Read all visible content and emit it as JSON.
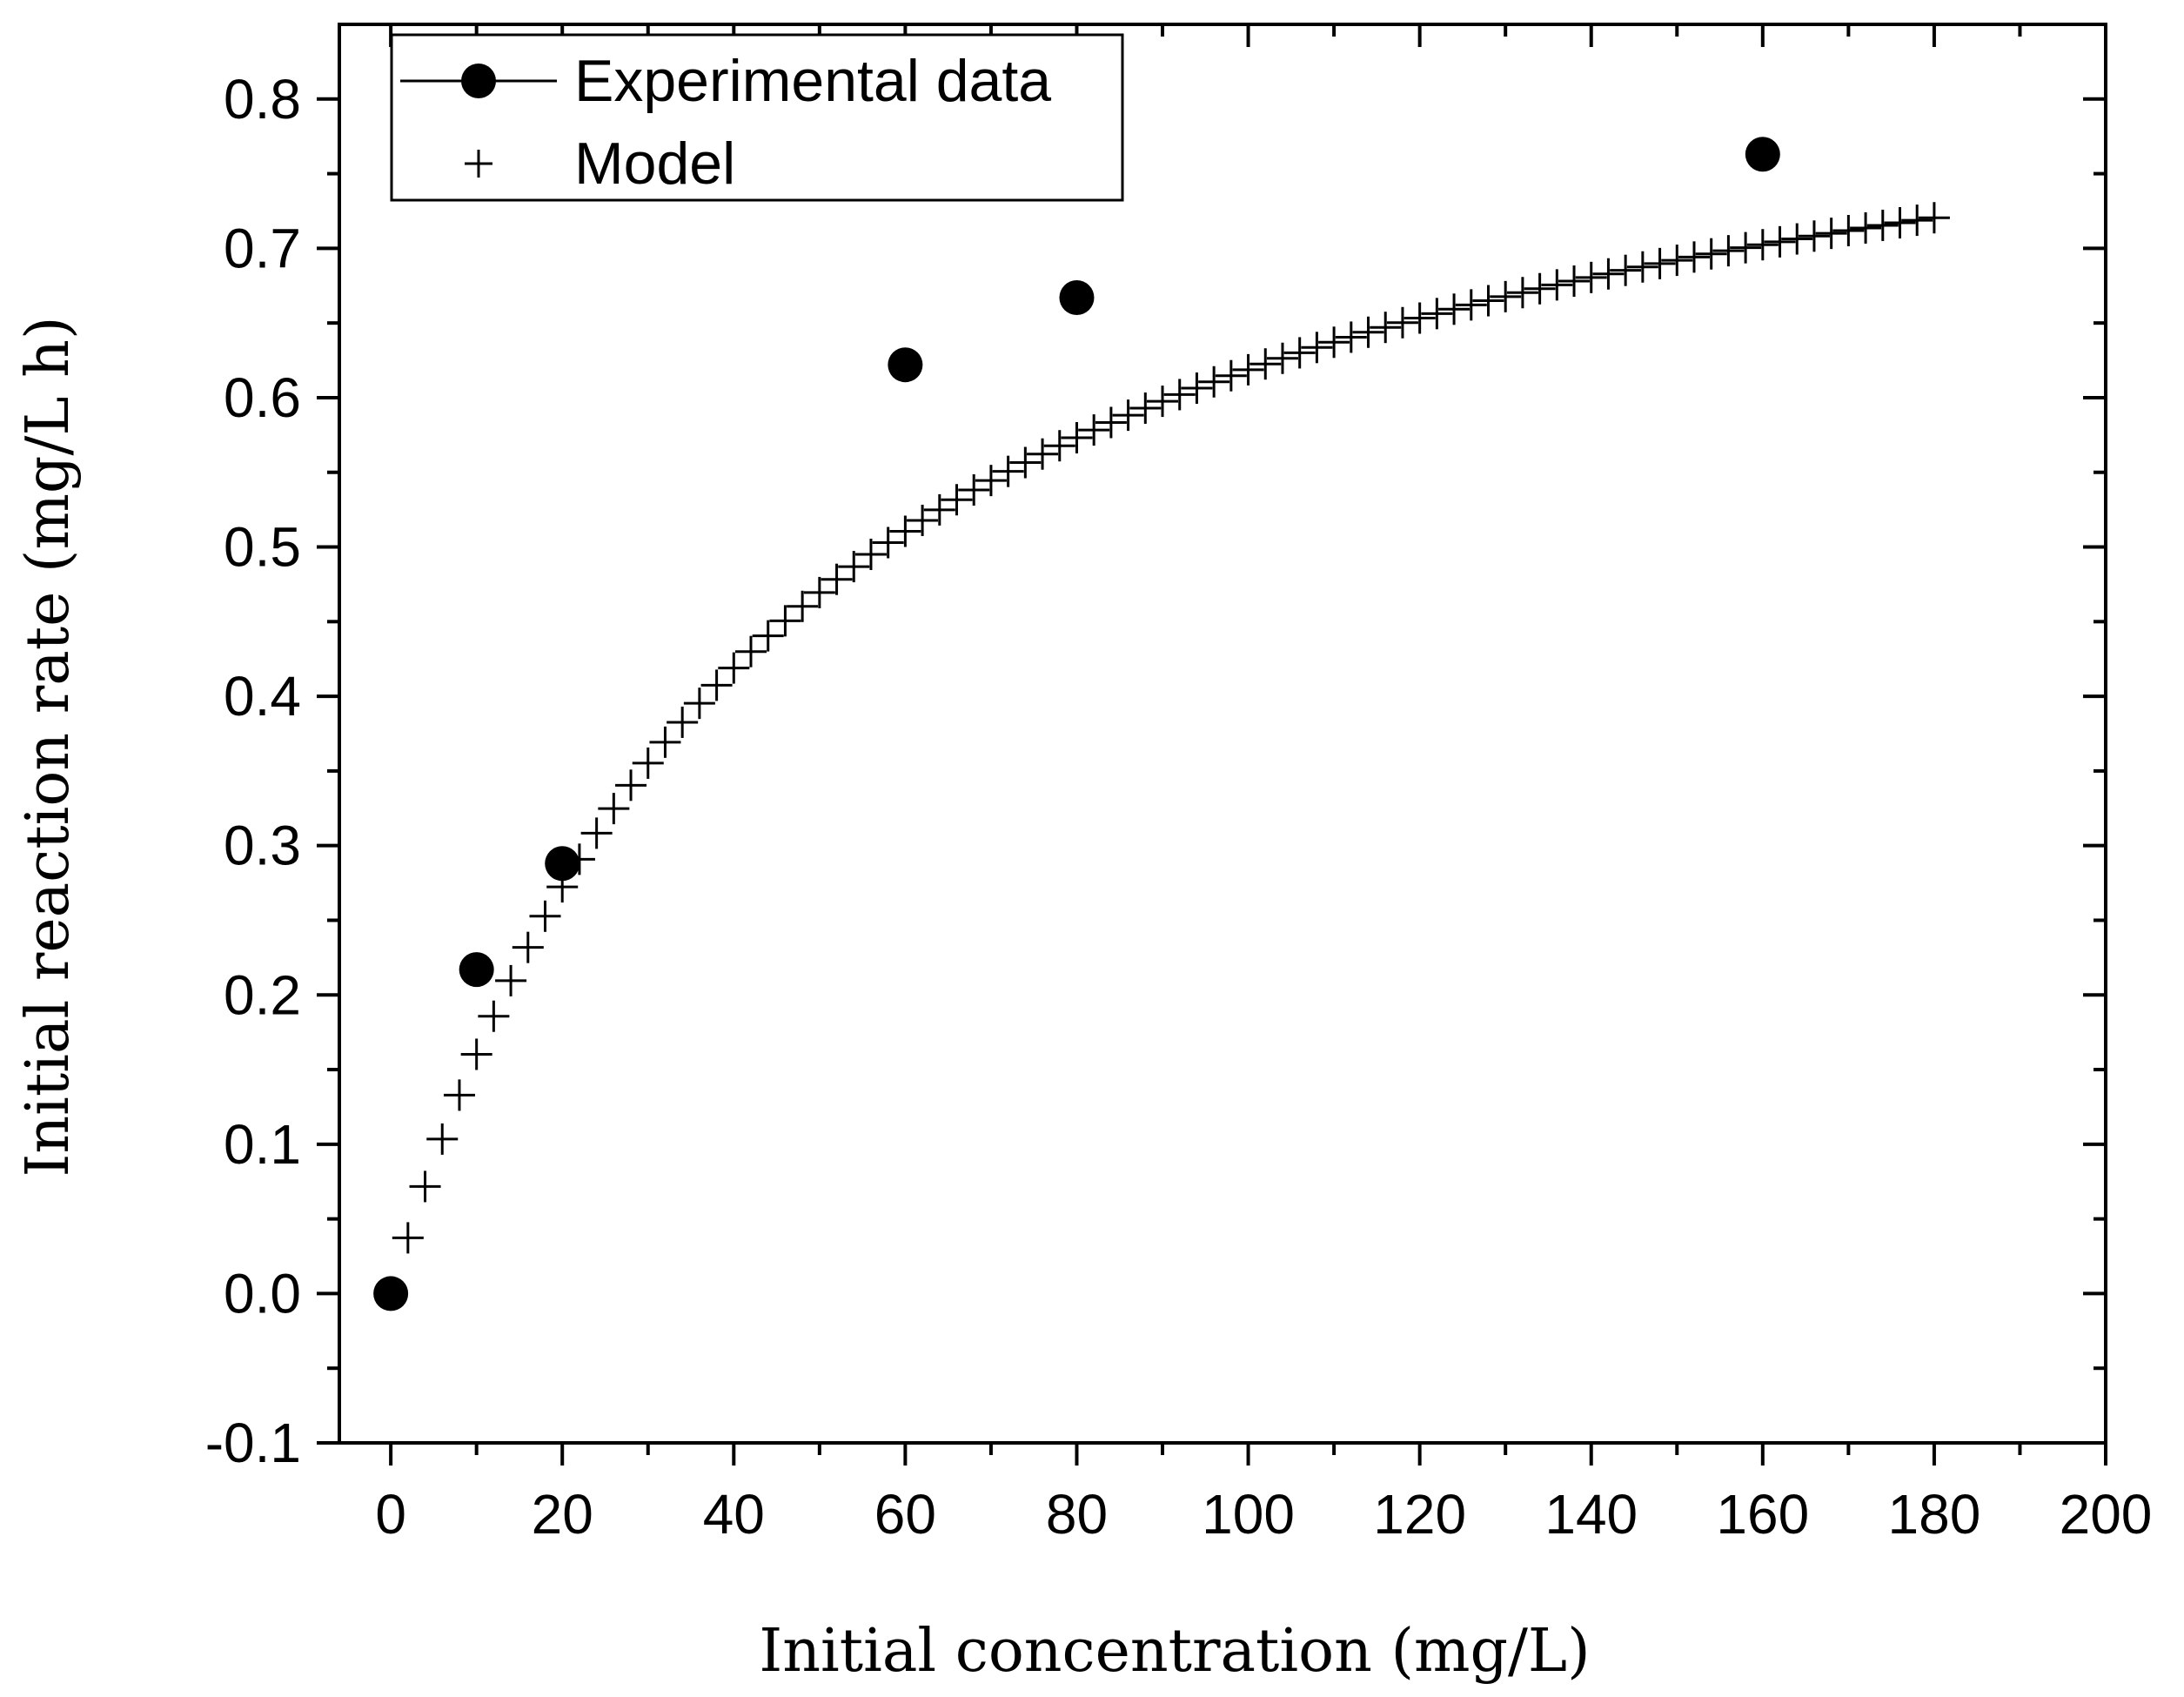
{
  "chart_data": {
    "type": "scatter",
    "title": "",
    "xlabel": "Initial concentration (mg/L)",
    "ylabel": "Initial reaction rate (mg/L h)",
    "xlim": [
      -6,
      200
    ],
    "ylim": [
      -0.1,
      0.85
    ],
    "x_ticks": [
      0,
      20,
      40,
      60,
      80,
      100,
      120,
      140,
      160,
      180,
      200
    ],
    "x_tick_labels": [
      "0",
      "20",
      "40",
      "60",
      "80",
      "100",
      "120",
      "140",
      "160",
      "180",
      "200"
    ],
    "y_ticks": [
      -0.1,
      0.0,
      0.1,
      0.2,
      0.3,
      0.4,
      0.5,
      0.6,
      0.7,
      0.8
    ],
    "y_tick_labels": [
      "-0.1",
      "0.0",
      "0.1",
      "0.2",
      "0.3",
      "0.4",
      "0.5",
      "0.6",
      "0.7",
      "0.8"
    ],
    "grid": false,
    "legend_position": "top-left",
    "series": [
      {
        "name": "Experimental data",
        "marker": "filled-circle",
        "color": "#000000",
        "x": [
          0,
          10,
          20,
          60,
          80,
          160
        ],
        "y": [
          0.0,
          0.217,
          0.288,
          0.622,
          0.667,
          0.763
        ]
      },
      {
        "name": "Model",
        "marker": "plus",
        "color": "#000000",
        "model": "Vmax*C/(K+C)",
        "Vmax": 0.907,
        "K": 46.6,
        "x_start": 2,
        "x_end": 180,
        "x_step": 2
      }
    ]
  }
}
